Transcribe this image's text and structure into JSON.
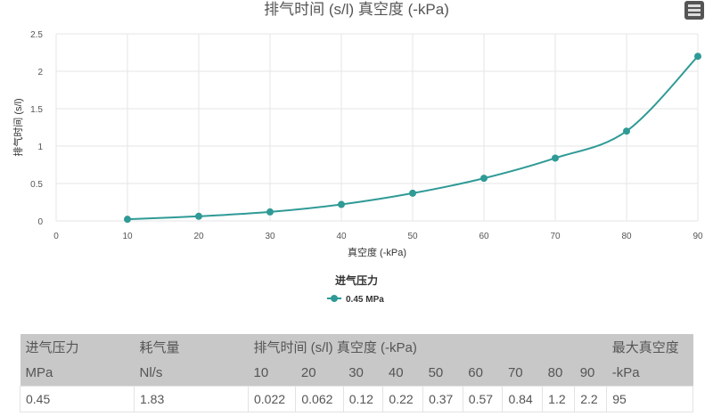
{
  "chart_data": {
    "type": "line",
    "title": "排气时间 (s/l) 真空度 (-kPa)",
    "xlabel": "真空度 (-kPa)",
    "ylabel": "排气时间 (s/l)",
    "xlim": [
      0,
      90
    ],
    "ylim": [
      0,
      2.5
    ],
    "xticks": [
      "0",
      "10",
      "20",
      "30",
      "40",
      "50",
      "60",
      "70",
      "80",
      "90"
    ],
    "yticks": [
      "0",
      "0.5",
      "1",
      "1.5",
      "2",
      "2.5"
    ],
    "grid": true,
    "legend_title": "进气压力",
    "legend_position": "bottom",
    "series": [
      {
        "name": "0.45 MPa",
        "color": "#2f9a96",
        "x": [
          10,
          20,
          30,
          40,
          50,
          60,
          70,
          80,
          90
        ],
        "y": [
          0.022,
          0.062,
          0.12,
          0.22,
          0.37,
          0.57,
          0.84,
          1.2,
          2.2
        ]
      }
    ]
  },
  "menu_icon": "hamburger-icon",
  "table": {
    "h1": [
      "进气压力",
      "耗气量",
      "排气时间 (s/l) 真空度 (-kPa)",
      "最大真空度"
    ],
    "h2": [
      "MPa",
      "Nl/s",
      "10",
      "20",
      "30",
      "40",
      "50",
      "60",
      "70",
      "80",
      "90",
      "-kPa"
    ],
    "row": [
      "0.45",
      "1.83",
      "0.022",
      "0.062",
      "0.12",
      "0.22",
      "0.37",
      "0.57",
      "0.84",
      "1.2",
      "2.2",
      "95"
    ]
  }
}
